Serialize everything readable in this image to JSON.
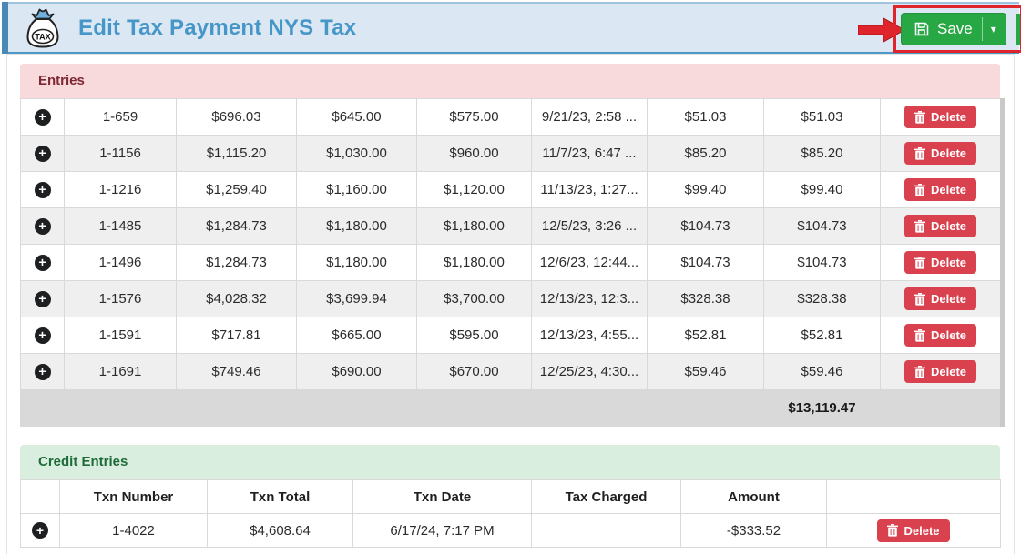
{
  "header": {
    "title": "Edit Tax Payment NYS Tax",
    "save_label": "Save",
    "icon_label": "TAX",
    "accent_color": "#4a88b6",
    "title_color": "#4796c8",
    "save_button_color": "#28a745",
    "annotation_color": "#e0242b"
  },
  "entries": {
    "title": "Entries",
    "delete_label": "Delete",
    "rows": [
      [
        "1-659",
        "$696.03",
        "$645.00",
        "$575.00",
        "9/21/23, 2:58 ...",
        "$51.03",
        "$51.03"
      ],
      [
        "1-1156",
        "$1,115.20",
        "$1,030.00",
        "$960.00",
        "11/7/23, 6:47 ...",
        "$85.20",
        "$85.20"
      ],
      [
        "1-1216",
        "$1,259.40",
        "$1,160.00",
        "$1,120.00",
        "11/13/23, 1:27...",
        "$99.40",
        "$99.40"
      ],
      [
        "1-1485",
        "$1,284.73",
        "$1,180.00",
        "$1,180.00",
        "12/5/23, 3:26 ...",
        "$104.73",
        "$104.73"
      ],
      [
        "1-1496",
        "$1,284.73",
        "$1,180.00",
        "$1,180.00",
        "12/6/23, 12:44...",
        "$104.73",
        "$104.73"
      ],
      [
        "1-1576",
        "$4,028.32",
        "$3,699.94",
        "$3,700.00",
        "12/13/23, 12:3...",
        "$328.38",
        "$328.38"
      ],
      [
        "1-1591",
        "$717.81",
        "$665.00",
        "$595.00",
        "12/13/23, 4:55...",
        "$52.81",
        "$52.81"
      ],
      [
        "1-1691",
        "$749.46",
        "$690.00",
        "$670.00",
        "12/25/23, 4:30...",
        "$59.46",
        "$59.46"
      ]
    ],
    "total": "$13,119.47"
  },
  "credits": {
    "title": "Credit Entries",
    "columns": [
      "Txn Number",
      "Txn Total",
      "Txn Date",
      "Tax Charged",
      "Amount"
    ],
    "delete_label": "Delete",
    "rows": [
      [
        "1-4022",
        "$4,608.64",
        "6/17/24, 7:17 PM",
        "",
        "-$333.52"
      ]
    ]
  }
}
